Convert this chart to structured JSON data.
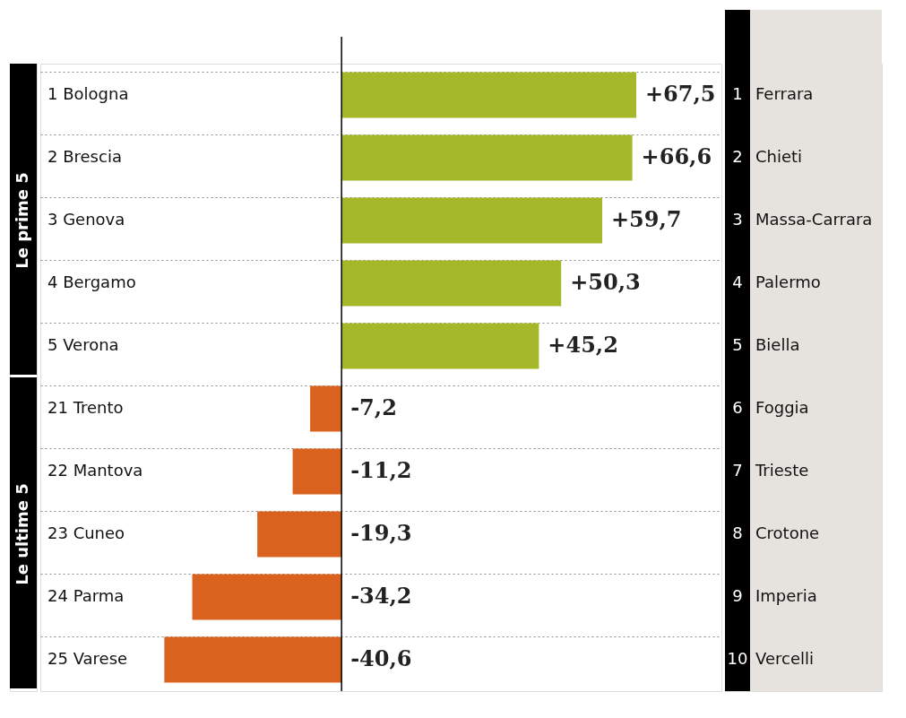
{
  "chart_data": {
    "type": "bar",
    "orientation": "horizontal",
    "categories": [
      "1 Bologna",
      "2 Brescia",
      "3 Genova",
      "4 Bergamo",
      "5 Verona",
      "21 Trento",
      "22 Mantova",
      "23 Cuneo",
      "24 Parma",
      "25 Varese"
    ],
    "values": [
      67.5,
      66.6,
      59.7,
      50.3,
      45.2,
      -7.2,
      -11.2,
      -19.3,
      -34.2,
      -40.6
    ],
    "colors": [
      "#a4b82a",
      "#a4b82a",
      "#a4b82a",
      "#a4b82a",
      "#a4b82a",
      "#d9621f",
      "#d9621f",
      "#d9621f",
      "#d9621f",
      "#d9621f"
    ],
    "value_labels": [
      "+67,5",
      "+66,6",
      "+59,7",
      "+50,3",
      "+45,2",
      "-7,2",
      "-11,2",
      "-19,3",
      "-34,2",
      "-40,6"
    ],
    "xlim": [
      -69,
      87
    ],
    "tick_labels": false,
    "grid": "y",
    "annotations": [
      "Le prime 5",
      "Le ultime 5",
      "1 Ferrara",
      "2 Chieti",
      "3 Massa-Carrara",
      "4 Palermo",
      "5 Biella",
      "6 Foggia",
      "7 Trieste",
      "8 Crotone",
      "9 Imperia",
      "10 Vercelli"
    ]
  }
}
